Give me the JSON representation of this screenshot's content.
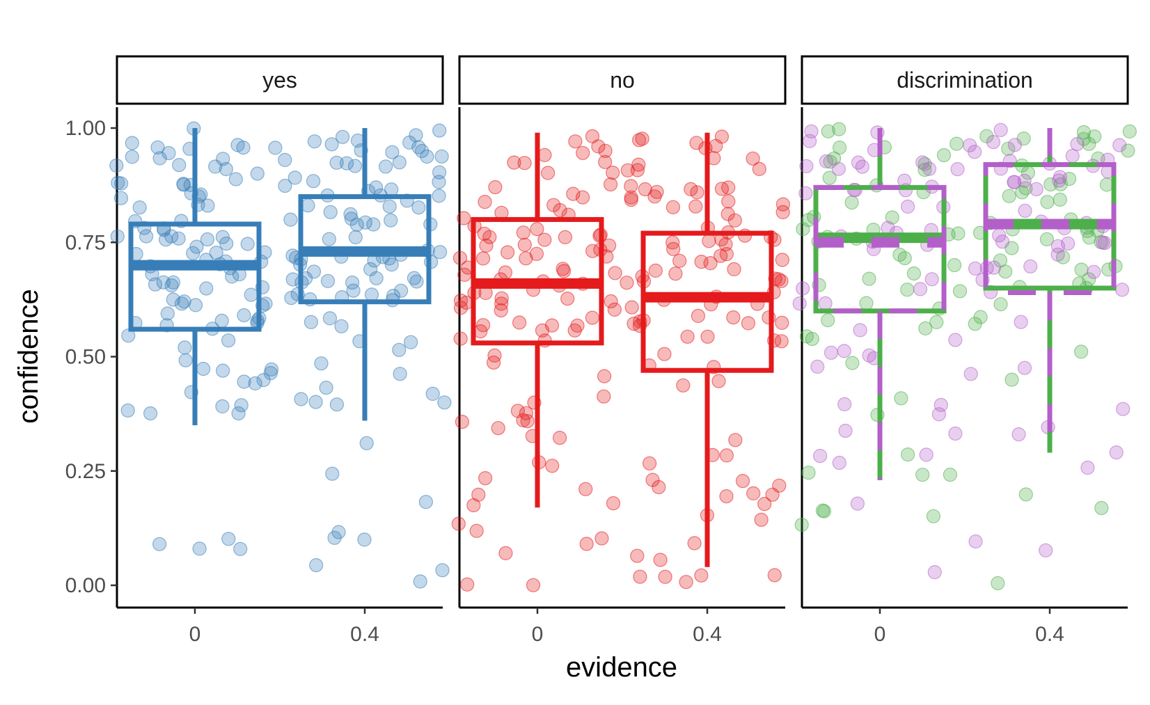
{
  "chart_data": {
    "type": "box",
    "xlabel": "evidence",
    "ylabel": "confidence",
    "ylim": [
      -0.04,
      1.05
    ],
    "yticks": [
      "0.00",
      "0.25",
      "0.50",
      "0.75",
      "1.00"
    ],
    "ytick_values": [
      0,
      0.25,
      0.5,
      0.75,
      1.0
    ],
    "xticks": [
      "0",
      "0.4"
    ],
    "jitter_points": true,
    "facets": [
      {
        "label": "yes",
        "series": [
          {
            "color": "#377eb8",
            "boxes": [
              {
                "x": "0",
                "min": 0.35,
                "q1": 0.56,
                "median": 0.7,
                "q3": 0.79,
                "max": 1.0
              },
              {
                "x": "0.4",
                "min": 0.36,
                "q1": 0.62,
                "median": 0.73,
                "q3": 0.85,
                "max": 1.0
              }
            ]
          }
        ]
      },
      {
        "label": "no",
        "series": [
          {
            "color": "#e41a1c",
            "boxes": [
              {
                "x": "0",
                "min": 0.17,
                "q1": 0.53,
                "median": 0.66,
                "q3": 0.8,
                "max": 0.99
              },
              {
                "x": "0.4",
                "min": 0.04,
                "q1": 0.47,
                "median": 0.63,
                "q3": 0.77,
                "max": 0.99
              }
            ]
          }
        ]
      },
      {
        "label": "discrimination",
        "series": [
          {
            "color": "#4daf4a",
            "boxes": [
              {
                "x": "0",
                "min": 0.23,
                "q1": 0.6,
                "median": 0.76,
                "q3": 0.87,
                "max": 1.0
              },
              {
                "x": "0.4",
                "min": 0.29,
                "q1": 0.65,
                "median": 0.79,
                "q3": 0.92,
                "max": 1.0
              }
            ]
          },
          {
            "color": "#b35fc9",
            "boxes": [
              {
                "x": "0",
                "min": 0.23,
                "q1": 0.6,
                "median": 0.75,
                "q3": 0.87,
                "max": 1.0
              },
              {
                "x": "0.4",
                "min": 0.29,
                "q1": 0.64,
                "median": 0.79,
                "q3": 0.92,
                "max": 1.0
              }
            ]
          }
        ]
      }
    ]
  }
}
